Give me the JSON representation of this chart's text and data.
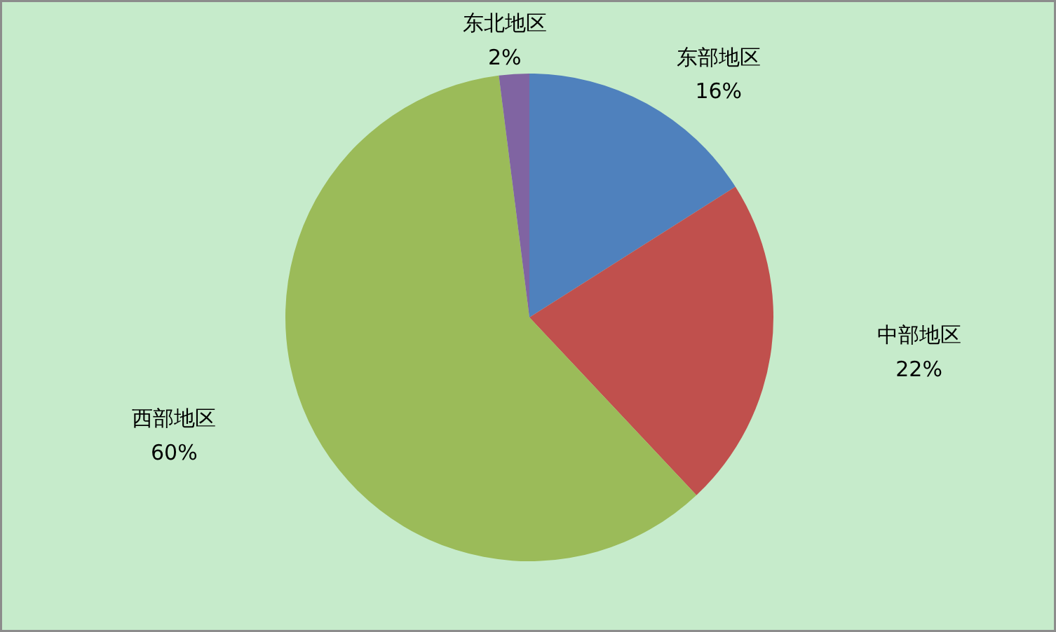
{
  "chart_data": {
    "type": "pie",
    "categories": [
      "东部地区",
      "中部地区",
      "西部地区",
      "东北地区"
    ],
    "values": [
      16,
      22,
      60,
      2
    ],
    "value_labels": [
      "16%",
      "22%",
      "60%",
      "2%"
    ],
    "colors": [
      "#4f81bd",
      "#c0504d",
      "#9bbb59",
      "#8064a2"
    ]
  }
}
